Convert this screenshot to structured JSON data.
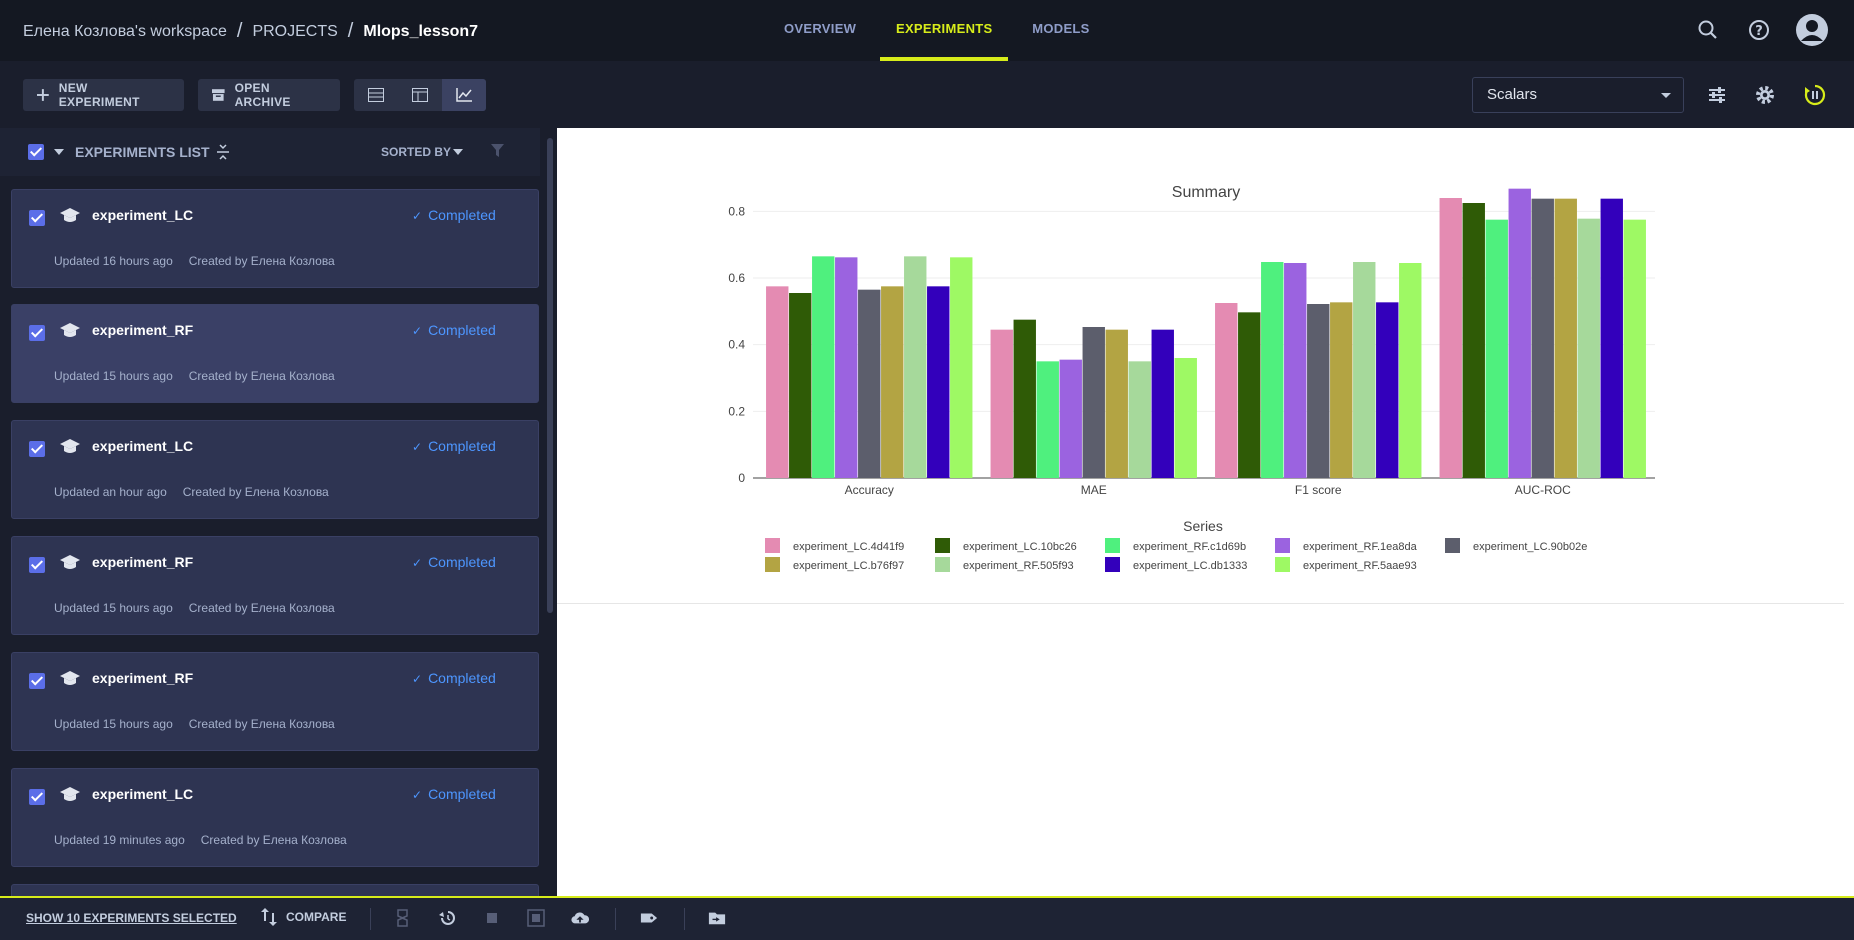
{
  "breadcrumb": {
    "workspace": "Елена Козлова's workspace",
    "projects": "PROJECTS",
    "project": "Mlops_lesson7"
  },
  "nav": {
    "tabs": [
      {
        "label": "OVERVIEW"
      },
      {
        "label": "EXPERIMENTS"
      },
      {
        "label": "MODELS"
      }
    ],
    "active": "EXPERIMENTS"
  },
  "toolbar": {
    "new_experiment": "NEW EXPERIMENT",
    "open_archive": "OPEN ARCHIVE",
    "view_select": "Scalars"
  },
  "list": {
    "header": "EXPERIMENTS LIST",
    "sorted_by": "SORTED BY",
    "items": [
      {
        "name": "experiment_LC",
        "status": "Completed",
        "updated": "Updated 16 hours ago",
        "created": "Created by Елена Козлова"
      },
      {
        "name": "experiment_RF",
        "status": "Completed",
        "updated": "Updated 15 hours ago",
        "created": "Created by Елена Козлова"
      },
      {
        "name": "experiment_LC",
        "status": "Completed",
        "updated": "Updated an hour ago",
        "created": "Created by Елена Козлова"
      },
      {
        "name": "experiment_RF",
        "status": "Completed",
        "updated": "Updated 15 hours ago",
        "created": "Created by Елена Козлова"
      },
      {
        "name": "experiment_RF",
        "status": "Completed",
        "updated": "Updated 15 hours ago",
        "created": "Created by Елена Козлова"
      },
      {
        "name": "experiment_LC",
        "status": "Completed",
        "updated": "Updated 19 minutes ago",
        "created": "Created by Елена Козлова"
      }
    ]
  },
  "bottombar": {
    "show_selected": "SHOW 10 EXPERIMENTS SELECTED",
    "compare": "COMPARE"
  },
  "colors": {
    "accent": "#d7ec1a",
    "status": "#4d96ff",
    "checkbox": "#5b6ee8"
  },
  "chart_data": {
    "type": "bar",
    "title": "Summary",
    "legend_title": "Series",
    "legend_position": "bottom",
    "categories": [
      "Accuracy",
      "MAE",
      "F1 score",
      "AUC-ROC"
    ],
    "ylim": [
      0,
      0.9
    ],
    "yticks": [
      "0",
      "0.2",
      "0.4",
      "0.6",
      "0.8"
    ],
    "series": [
      {
        "name": "experiment_LC.4d41f9",
        "color": "#e48bb2",
        "values": [
          0.575,
          0.445,
          0.525,
          0.84
        ]
      },
      {
        "name": "experiment_LC.10bc26",
        "color": "#2f5b06",
        "values": [
          0.555,
          0.475,
          0.497,
          0.825
        ]
      },
      {
        "name": "experiment_RF.c1d69b",
        "color": "#4ff07e",
        "values": [
          0.665,
          0.35,
          0.648,
          0.775
        ]
      },
      {
        "name": "experiment_RF.1ea8da",
        "color": "#9b63e0",
        "values": [
          0.662,
          0.355,
          0.645,
          0.868
        ]
      },
      {
        "name": "experiment_LC.90b02e",
        "color": "#5c5e6c",
        "values": [
          0.565,
          0.453,
          0.522,
          0.838
        ]
      },
      {
        "name": "experiment_LC.b76f97",
        "color": "#b3a443",
        "values": [
          0.575,
          0.445,
          0.527,
          0.838
        ]
      },
      {
        "name": "experiment_RF.505f93",
        "color": "#a6d99b",
        "values": [
          0.665,
          0.35,
          0.648,
          0.778
        ]
      },
      {
        "name": "experiment_LC.db1333",
        "color": "#3300bb",
        "values": [
          0.575,
          0.445,
          0.527,
          0.838
        ]
      },
      {
        "name": "experiment_RF.5aae93",
        "color": "#9ef964",
        "values": [
          0.662,
          0.36,
          0.645,
          0.775
        ]
      }
    ]
  }
}
